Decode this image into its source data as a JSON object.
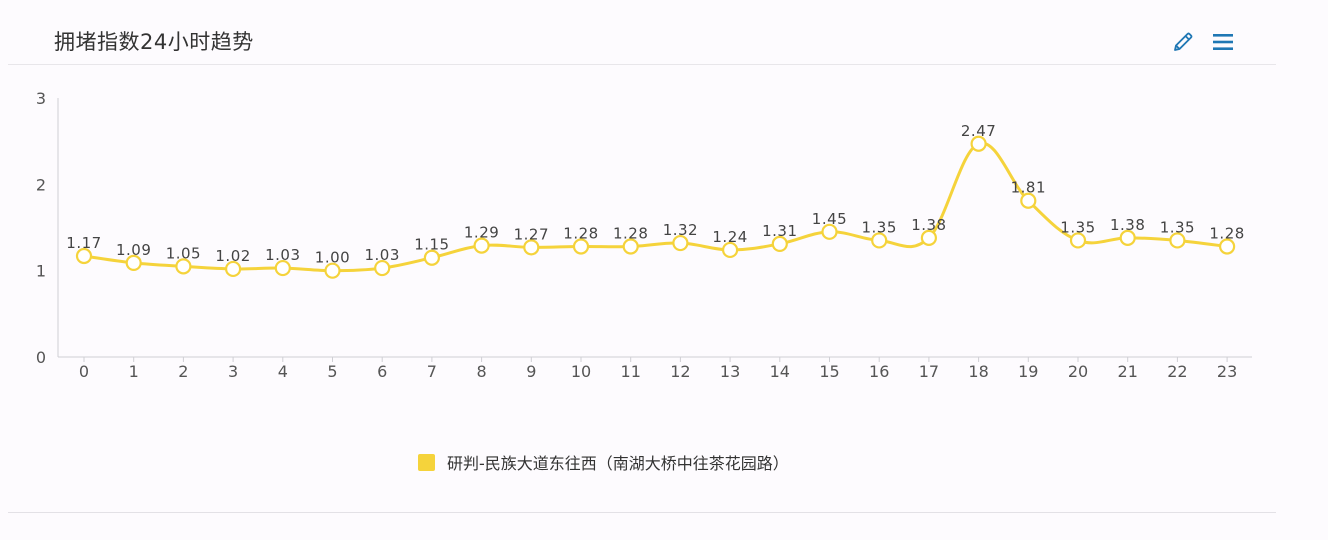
{
  "panel": {
    "title": "拥堵指数24小时趋势"
  },
  "toolbar": {
    "edit_icon": "pencil-icon",
    "menu_icon": "hamburger-menu-icon",
    "icon_color": "#1f77b4"
  },
  "colors": {
    "series": "#f5d33b",
    "marker_fill": "#ffffff",
    "axis": "#cfcfd4",
    "label_text": "#444444",
    "tick_text": "#555555"
  },
  "chart_data": {
    "type": "line",
    "title": "拥堵指数24小时趋势",
    "xlabel": "",
    "ylabel": "",
    "categories": [
      "0",
      "1",
      "2",
      "3",
      "4",
      "5",
      "6",
      "7",
      "8",
      "9",
      "10",
      "11",
      "12",
      "13",
      "14",
      "15",
      "16",
      "17",
      "18",
      "19",
      "20",
      "21",
      "22",
      "23"
    ],
    "series": [
      {
        "name": "研判-民族大道东往西（南湖大桥中往茶花园路）",
        "color": "#f5d33b",
        "values": [
          1.17,
          1.09,
          1.05,
          1.02,
          1.03,
          1.0,
          1.03,
          1.15,
          1.29,
          1.27,
          1.28,
          1.28,
          1.32,
          1.24,
          1.31,
          1.45,
          1.35,
          1.38,
          2.47,
          1.81,
          1.35,
          1.38,
          1.35,
          1.28
        ],
        "value_labels": [
          "1.17",
          "1.09",
          "1.05",
          "1.02",
          "1.03",
          "1.00",
          "1.03",
          "1.15",
          "1.29",
          "1.27",
          "1.28",
          "1.28",
          "1.32",
          "1.24",
          "1.31",
          "1.45",
          "1.35",
          "1.38",
          "2.47",
          "1.81",
          "1.35",
          "1.38",
          "1.35",
          "1.28"
        ]
      }
    ],
    "ylim": [
      0,
      3
    ],
    "yticks": [
      "0",
      "1",
      "2",
      "3"
    ],
    "grid": false,
    "legend": "bottom-center",
    "smooth": true
  }
}
